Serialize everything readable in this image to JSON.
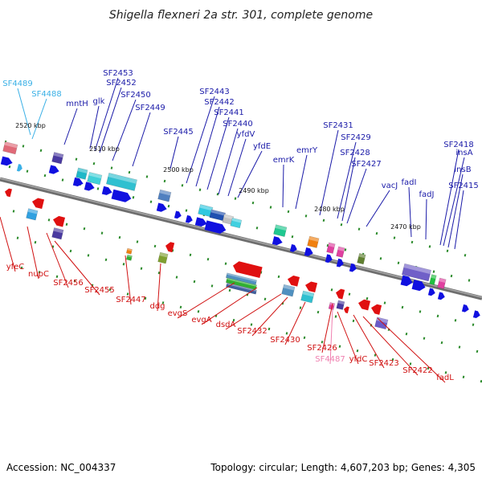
{
  "title": "Shigella flexneri 2a str. 301, complete genome",
  "footer": {
    "accession": "Accession: NC_004337",
    "topology": "Topology: circular; Length: 4,607,203 bp; Genes: 4,305"
  },
  "colors": {
    "backbone": "#888888",
    "label_top": "#1a1aa8",
    "label_bottom": "#d01010",
    "label_light_blue": "#3ab0e6",
    "label_pink": "#f080b0",
    "tick": "#2a8a2a"
  },
  "kbp_labels": [
    "2520 kbp",
    "2510 kbp",
    "2500 kbp",
    "2490 kbp",
    "2480 kbp",
    "2470 kbp"
  ],
  "top_labels": [
    {
      "id": "SF4489",
      "color": "light_blue"
    },
    {
      "id": "SF4488",
      "color": "light_blue"
    },
    {
      "id": "mntH",
      "color": "top"
    },
    {
      "id": "glk",
      "color": "top"
    },
    {
      "id": "SF2453",
      "color": "top"
    },
    {
      "id": "SF2452",
      "color": "top"
    },
    {
      "id": "SF2450",
      "color": "top"
    },
    {
      "id": "SF2449",
      "color": "top"
    },
    {
      "id": "SF2445",
      "color": "top"
    },
    {
      "id": "SF2443",
      "color": "top"
    },
    {
      "id": "SF2442",
      "color": "top"
    },
    {
      "id": "SF2441",
      "color": "top"
    },
    {
      "id": "SF2440",
      "color": "top"
    },
    {
      "id": "yfdV",
      "color": "top"
    },
    {
      "id": "yfdE",
      "color": "top"
    },
    {
      "id": "emrK",
      "color": "top"
    },
    {
      "id": "emrY",
      "color": "top"
    },
    {
      "id": "SF2431",
      "color": "top"
    },
    {
      "id": "SF2429",
      "color": "top"
    },
    {
      "id": "SF2428",
      "color": "top"
    },
    {
      "id": "SF2427",
      "color": "top"
    },
    {
      "id": "vacJ",
      "color": "top"
    },
    {
      "id": "fadI",
      "color": "top"
    },
    {
      "id": "fadJ",
      "color": "top"
    },
    {
      "id": "SF2418",
      "color": "top"
    },
    {
      "id": "insA",
      "color": "top"
    },
    {
      "id": "insB",
      "color": "top"
    },
    {
      "id": "SF2415",
      "color": "top"
    }
  ],
  "bottom_labels": [
    {
      "id": "yfeC",
      "color": "bottom"
    },
    {
      "id": "nupC",
      "color": "bottom"
    },
    {
      "id": "SF2456",
      "color": "bottom"
    },
    {
      "id": "SF2455",
      "color": "bottom"
    },
    {
      "id": "SF2447",
      "color": "bottom"
    },
    {
      "id": "ddg",
      "color": "bottom"
    },
    {
      "id": "evgS",
      "color": "bottom"
    },
    {
      "id": "evgA",
      "color": "bottom"
    },
    {
      "id": "dsdA",
      "color": "bottom"
    },
    {
      "id": "SF2432",
      "color": "bottom"
    },
    {
      "id": "SF2430",
      "color": "bottom"
    },
    {
      "id": "SF2426",
      "color": "bottom"
    },
    {
      "id": "SF4487",
      "color": "pink"
    },
    {
      "id": "yfdC",
      "color": "bottom"
    },
    {
      "id": "SF2423",
      "color": "bottom"
    },
    {
      "id": "SF2422",
      "color": "bottom"
    },
    {
      "id": "fadL",
      "color": "bottom"
    }
  ]
}
